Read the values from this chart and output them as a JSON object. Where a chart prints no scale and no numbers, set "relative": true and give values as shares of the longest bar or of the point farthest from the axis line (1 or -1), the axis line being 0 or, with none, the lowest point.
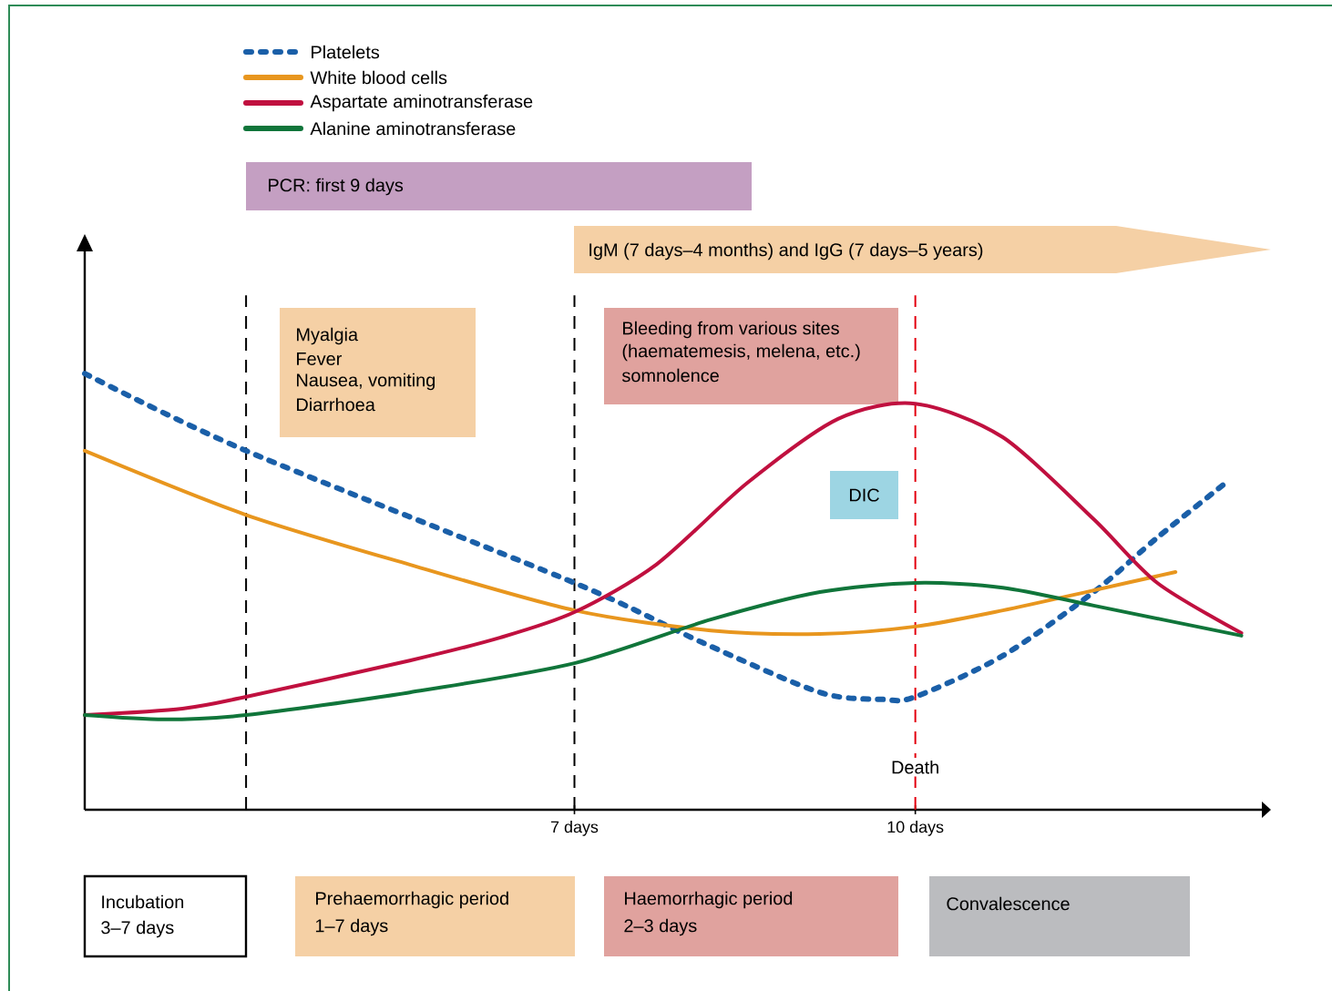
{
  "chart_data": {
    "type": "line",
    "relative": true,
    "xlim": [
      2.69,
      13.05
    ],
    "xticks": [
      {
        "value": 7,
        "label": "7 days"
      },
      {
        "value": 10,
        "label": "10 days"
      }
    ],
    "legend": "top left",
    "series": [
      {
        "name": "Platelets",
        "color": "#1a5fa8",
        "line_style": "dotted",
        "x": [
          2.69,
          4.11,
          7,
          8.12,
          9.16,
          9.72,
          10,
          10.77,
          11.57,
          12.13,
          12.73
        ],
        "values": [
          1.0,
          0.823,
          0.52,
          0.384,
          0.269,
          0.253,
          0.259,
          0.353,
          0.499,
          0.624,
          0.749
        ]
      },
      {
        "name": "White blood cells",
        "color": "#e8961e",
        "line_style": "solid",
        "x": [
          2.69,
          4.11,
          5.55,
          7,
          8.2,
          9.16,
          10,
          10.77,
          11.57,
          12.29
        ],
        "values": [
          0.823,
          0.676,
          0.562,
          0.457,
          0.411,
          0.403,
          0.42,
          0.457,
          0.503,
          0.545
        ]
      },
      {
        "name": "Aspartate aminotransferase",
        "color": "#c0103f",
        "line_style": "solid",
        "x": [
          2.69,
          3.55,
          4.11,
          5.55,
          6.35,
          7,
          7.72,
          8.52,
          9.32,
          10,
          10.77,
          11.57,
          12.13,
          12.87
        ],
        "values": [
          0.217,
          0.232,
          0.259,
          0.342,
          0.395,
          0.453,
          0.562,
          0.749,
          0.896,
          0.931,
          0.854,
          0.666,
          0.52,
          0.405
        ]
      },
      {
        "name": "Alanine aminotransferase",
        "color": "#10753a",
        "line_style": "solid",
        "x": [
          2.69,
          3.39,
          4.11,
          5.55,
          7,
          8.2,
          9.16,
          10,
          10.77,
          11.57,
          12.87
        ],
        "values": [
          0.217,
          0.207,
          0.217,
          0.269,
          0.336,
          0.436,
          0.499,
          0.52,
          0.509,
          0.468,
          0.399
        ]
      }
    ],
    "ref_lines": [
      {
        "axis": "x",
        "value": 4.11,
        "color": "#000000",
        "line_style": "dashed"
      },
      {
        "axis": "x",
        "value": 7,
        "color": "#000000",
        "line_style": "dashed"
      },
      {
        "axis": "x",
        "value": 10,
        "color": "#e3000f",
        "line_style": "dashed",
        "label": "Death"
      }
    ],
    "annotations": [
      "PCR: first 9 days",
      "IgM (7 days–4 months)  and IgG (7 days–5 years)",
      "Myalgia",
      "Fever",
      "Nausea, vomiting",
      "Diarrhoea",
      "Bleeding from various sites",
      "(haematemesis, melena, etc.)",
      "somnolence",
      "DIC",
      "Incubation",
      "3–7 days",
      "Prehaemorrhagic period",
      "1–7 days",
      "Haemorrhagic period",
      "2–3 days",
      "Convalescence"
    ]
  }
}
